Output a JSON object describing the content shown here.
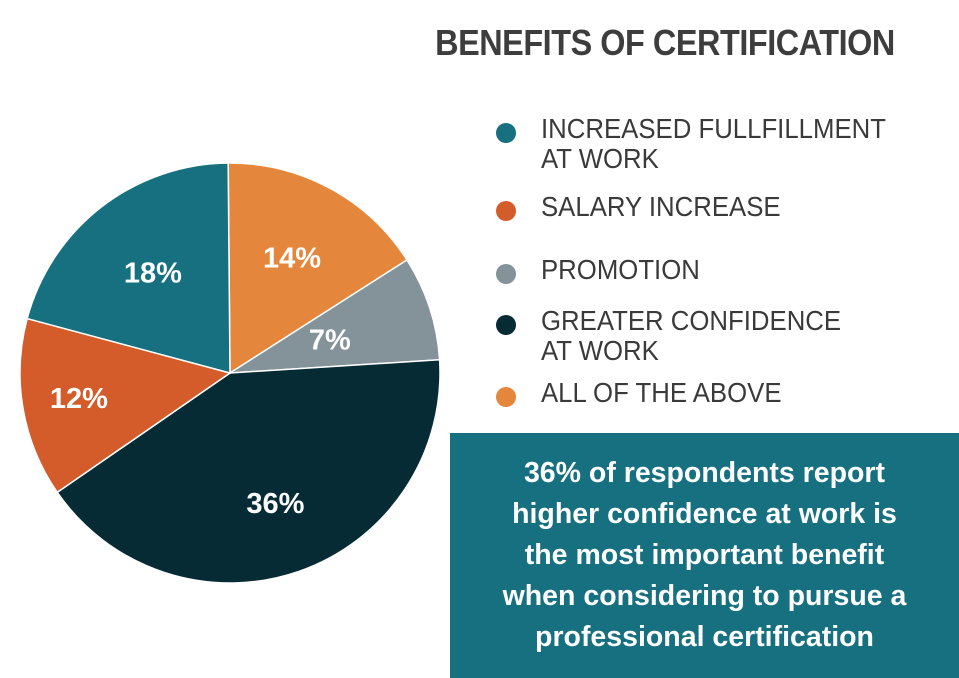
{
  "title": "BENEFITS OF CERTIFICATION",
  "chart_data": {
    "type": "pie",
    "title": "BENEFITS OF CERTIFICATION",
    "categories": [
      "INCREASED FULLFILLMENT AT WORK",
      "SALARY INCREASE",
      "PROMOTION",
      "GREATER CONFIDENCE AT WORK",
      "ALL OF THE ABOVE"
    ],
    "values": [
      18,
      12,
      7,
      36,
      14
    ],
    "labels": [
      "18%",
      "12%",
      "7%",
      "36%",
      "14%"
    ],
    "colors": [
      "#17707f",
      "#d45c2a",
      "#839399",
      "#062b35",
      "#e4873d"
    ],
    "legend_position": "right"
  },
  "legend": [
    {
      "label": "INCREASED FULLFILLMENT\nAT WORK",
      "color": "#17707f"
    },
    {
      "label": "SALARY INCREASE",
      "color": "#d45c2a"
    },
    {
      "label": "PROMOTION",
      "color": "#839399"
    },
    {
      "label": "GREATER CONFIDENCE\nAT WORK",
      "color": "#062b35"
    },
    {
      "label": "ALL OF THE ABOVE",
      "color": "#e4873d"
    }
  ],
  "callout": {
    "text": "36% of respondents report\nhigher confidence at work is\nthe most important benefit\nwhen considering to pursue a\nprofessional certification",
    "color": "#17707f"
  }
}
